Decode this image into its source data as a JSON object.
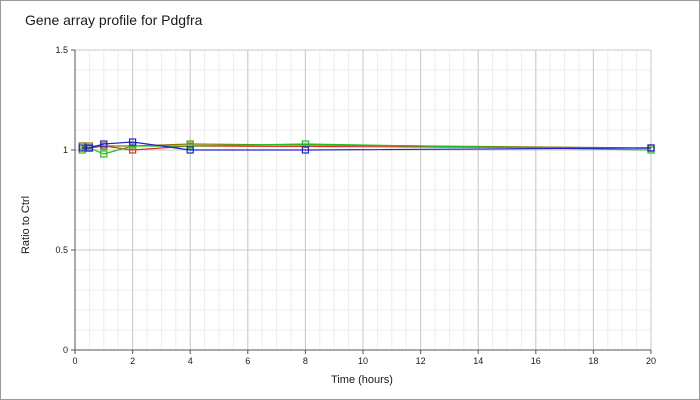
{
  "chart_data": {
    "type": "line",
    "title": "Gene array profile for Pdgfra",
    "xlabel": "Time (hours)",
    "ylabel": "Ratio to Ctrl",
    "xlim": [
      0,
      20
    ],
    "ylim": [
      0,
      1.5
    ],
    "xticks": [
      0,
      2,
      4,
      6,
      8,
      10,
      12,
      14,
      16,
      18,
      20
    ],
    "xtick_labels": [
      "0",
      "2",
      "4",
      "6",
      "8",
      "10",
      "12",
      "14",
      "16",
      "18",
      "20"
    ],
    "yticks": [
      0,
      0.5,
      1,
      1.5
    ],
    "ytick_labels": [
      "0",
      "0.5",
      "1",
      "1.5"
    ],
    "grid": true,
    "legend": "none",
    "series": [
      {
        "color": "#e03030",
        "x": [
          0.25,
          0.5,
          1,
          2,
          4,
          20
        ],
        "y": [
          1.02,
          1.01,
          1.02,
          1.0,
          1.02,
          1.01
        ]
      },
      {
        "color": "#8a7a00",
        "x": [
          0.25,
          0.5,
          1,
          2,
          4,
          20
        ],
        "y": [
          1.02,
          1.02,
          1.02,
          1.02,
          1.03,
          1.01
        ]
      },
      {
        "color": "#20c020",
        "x": [
          0.25,
          0.5,
          1,
          2,
          4,
          8,
          20
        ],
        "y": [
          1.0,
          1.01,
          0.98,
          1.02,
          1.02,
          1.03,
          1.0
        ]
      },
      {
        "color": "#2020d0",
        "x": [
          0.25,
          0.5,
          1,
          2,
          4,
          8,
          20
        ],
        "y": [
          1.01,
          1.01,
          1.03,
          1.04,
          1.0,
          1.0,
          1.01
        ]
      }
    ]
  }
}
